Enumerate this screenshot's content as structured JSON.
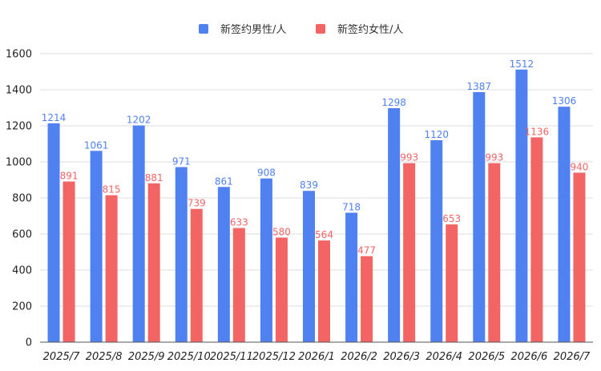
{
  "chart_data": {
    "type": "bar",
    "categories": [
      "2025/7",
      "2025/8",
      "2025/9",
      "2025/10",
      "2025/11",
      "2025/12",
      "2026/1",
      "2026/2",
      "2026/3",
      "2026/4",
      "2026/5",
      "2026/6",
      "2026/7"
    ],
    "series": [
      {
        "name": "新签约男性/人",
        "color": "#4f81f0",
        "values": [
          1214,
          1061,
          1202,
          971,
          861,
          908,
          839,
          718,
          1298,
          1120,
          1387,
          1512,
          1306
        ]
      },
      {
        "name": "新签约女性/人",
        "color": "#f36464",
        "values": [
          891,
          815,
          881,
          739,
          633,
          580,
          564,
          477,
          993,
          653,
          993,
          1136,
          940
        ]
      }
    ],
    "ylim": [
      0,
      1600
    ],
    "yticks": [
      0,
      200,
      400,
      600,
      800,
      1000,
      1200,
      1400,
      1600
    ],
    "grid": true,
    "legend_position": "top-center",
    "title": "",
    "xlabel": "",
    "ylabel": ""
  }
}
